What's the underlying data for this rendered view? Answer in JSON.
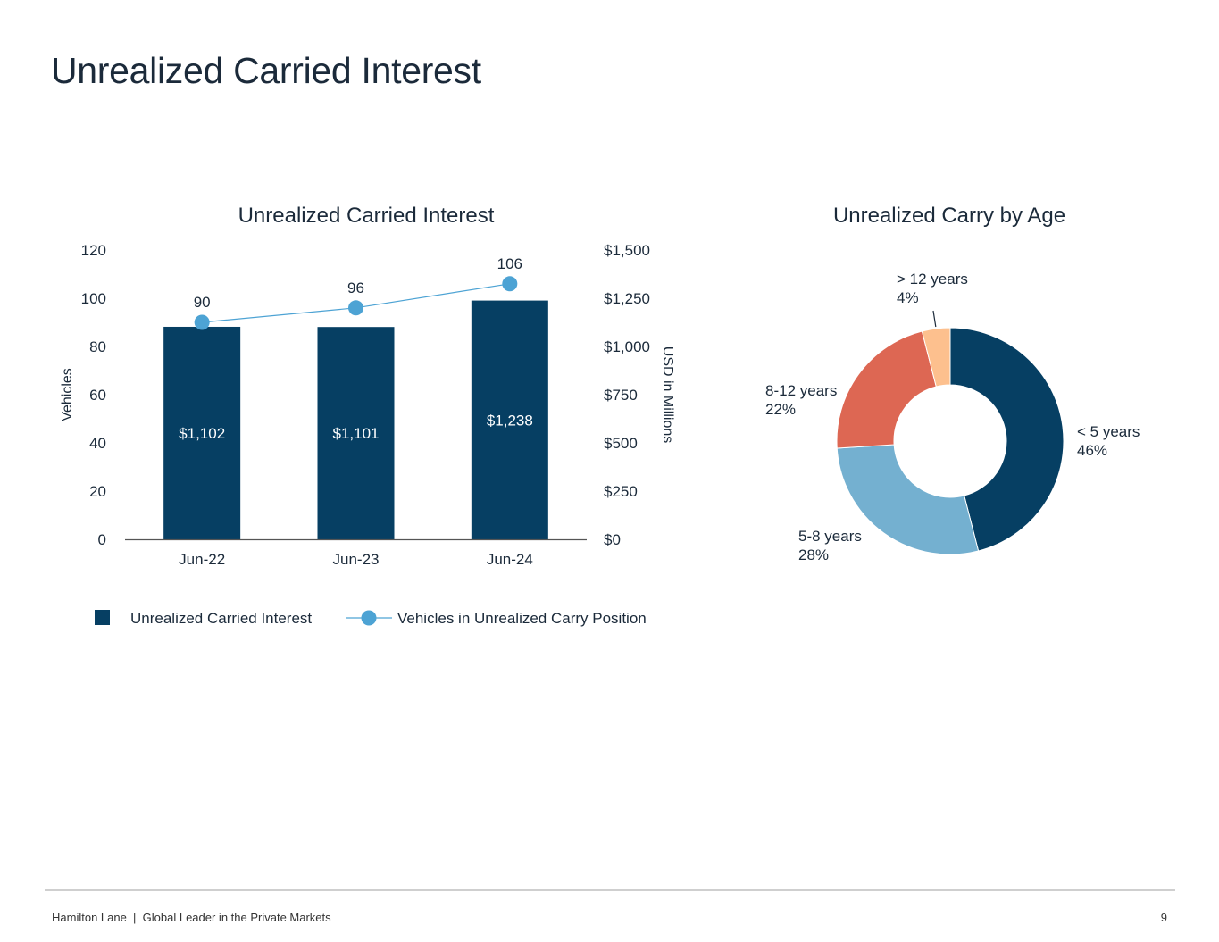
{
  "page": {
    "title": "Unrealized Carried Interest",
    "footer": "Hamilton Lane  |  Global Leader in the Private Markets",
    "page_number": "9"
  },
  "colors": {
    "navy": "#063f63",
    "light_blue": "#74b0d0",
    "line_blue": "#4da3d4",
    "coral": "#dd6753",
    "peach": "#fdc08e"
  },
  "chart_data": [
    {
      "type": "bar",
      "title": "Unrealized Carried Interest",
      "categories": [
        "Jun-22",
        "Jun-23",
        "Jun-24"
      ],
      "y_left": {
        "label": "Vehicles",
        "range": [
          0,
          120
        ],
        "ticks": [
          "0",
          "20",
          "40",
          "60",
          "80",
          "100",
          "120"
        ]
      },
      "y_right": {
        "label": "USD in Millions",
        "range": [
          0,
          1500
        ],
        "ticks": [
          "$0",
          "$250",
          "$500",
          "$750",
          "$1,000",
          "$1,250",
          "$1,500"
        ]
      },
      "series": [
        {
          "name": "Unrealized Carried Interest",
          "type": "bar",
          "axis": "right",
          "values": [
            1102,
            1101,
            1238
          ],
          "labels": [
            "$1,102",
            "$1,101",
            "$1,238"
          ]
        },
        {
          "name": "Vehicles in Unrealized Carry Position",
          "type": "line",
          "axis": "left",
          "values": [
            90,
            96,
            106
          ],
          "labels": [
            "90",
            "96",
            "106"
          ]
        }
      ],
      "legend": "bottom"
    },
    {
      "type": "pie",
      "title": "Unrealized Carry by Age",
      "slices": [
        {
          "label": "< 5 years",
          "value": 46,
          "display": "46%"
        },
        {
          "label": "5-8 years",
          "value": 28,
          "display": "28%"
        },
        {
          "label": "8-12 years",
          "value": 22,
          "display": "22%"
        },
        {
          "label": "> 12 years",
          "value": 4,
          "display": "4%"
        }
      ]
    }
  ]
}
